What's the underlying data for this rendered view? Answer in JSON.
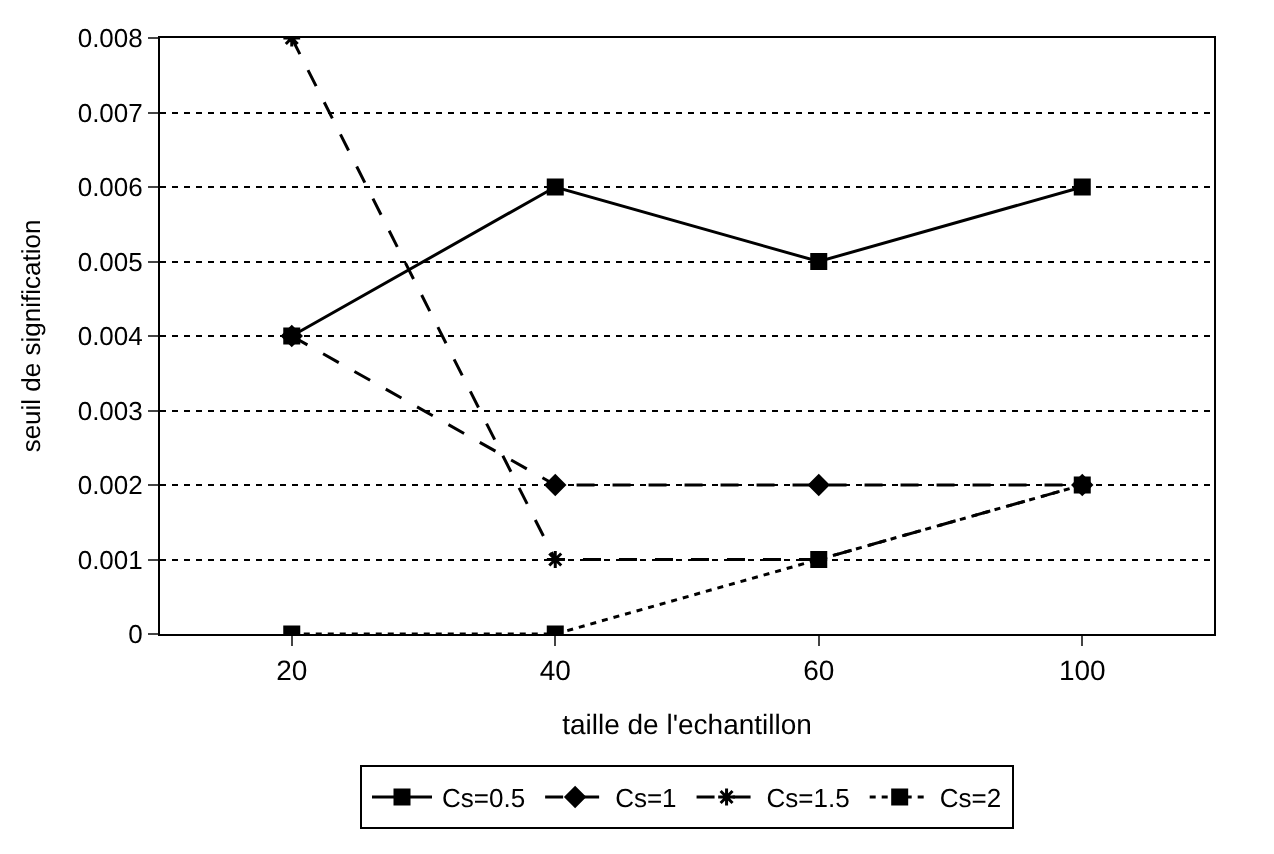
{
  "chart_data": {
    "type": "line",
    "xlabel": "taille de l'echantillon",
    "ylabel": "seuil de signification",
    "categories": [
      "20",
      "40",
      "60",
      "100"
    ],
    "ylim": [
      0,
      0.008
    ],
    "yticks": [
      0,
      0.001,
      0.002,
      0.003,
      0.004,
      0.005,
      0.006,
      0.007,
      0.008
    ],
    "grid": "y",
    "legend": "bottom",
    "series": [
      {
        "name": "Cs=0.5",
        "color": "#000000",
        "values": [
          0.004,
          0.006,
          0.005,
          0.006
        ],
        "marker": "square",
        "line_style": "solid"
      },
      {
        "name": "Cs=1",
        "color": "#000000",
        "values": [
          0.004,
          0.002,
          0.002,
          0.002
        ],
        "marker": "diamond",
        "line_style": "dashed"
      },
      {
        "name": "Cs=1.5",
        "color": "#000000",
        "values": [
          0.008,
          0.001,
          0.001,
          0.002
        ],
        "marker": "cross",
        "line_style": "dashed"
      },
      {
        "name": "Cs=2",
        "color": "#000000",
        "values": [
          0,
          0,
          0.001,
          0.002
        ],
        "marker": "square",
        "line_style": "dotted"
      }
    ]
  }
}
